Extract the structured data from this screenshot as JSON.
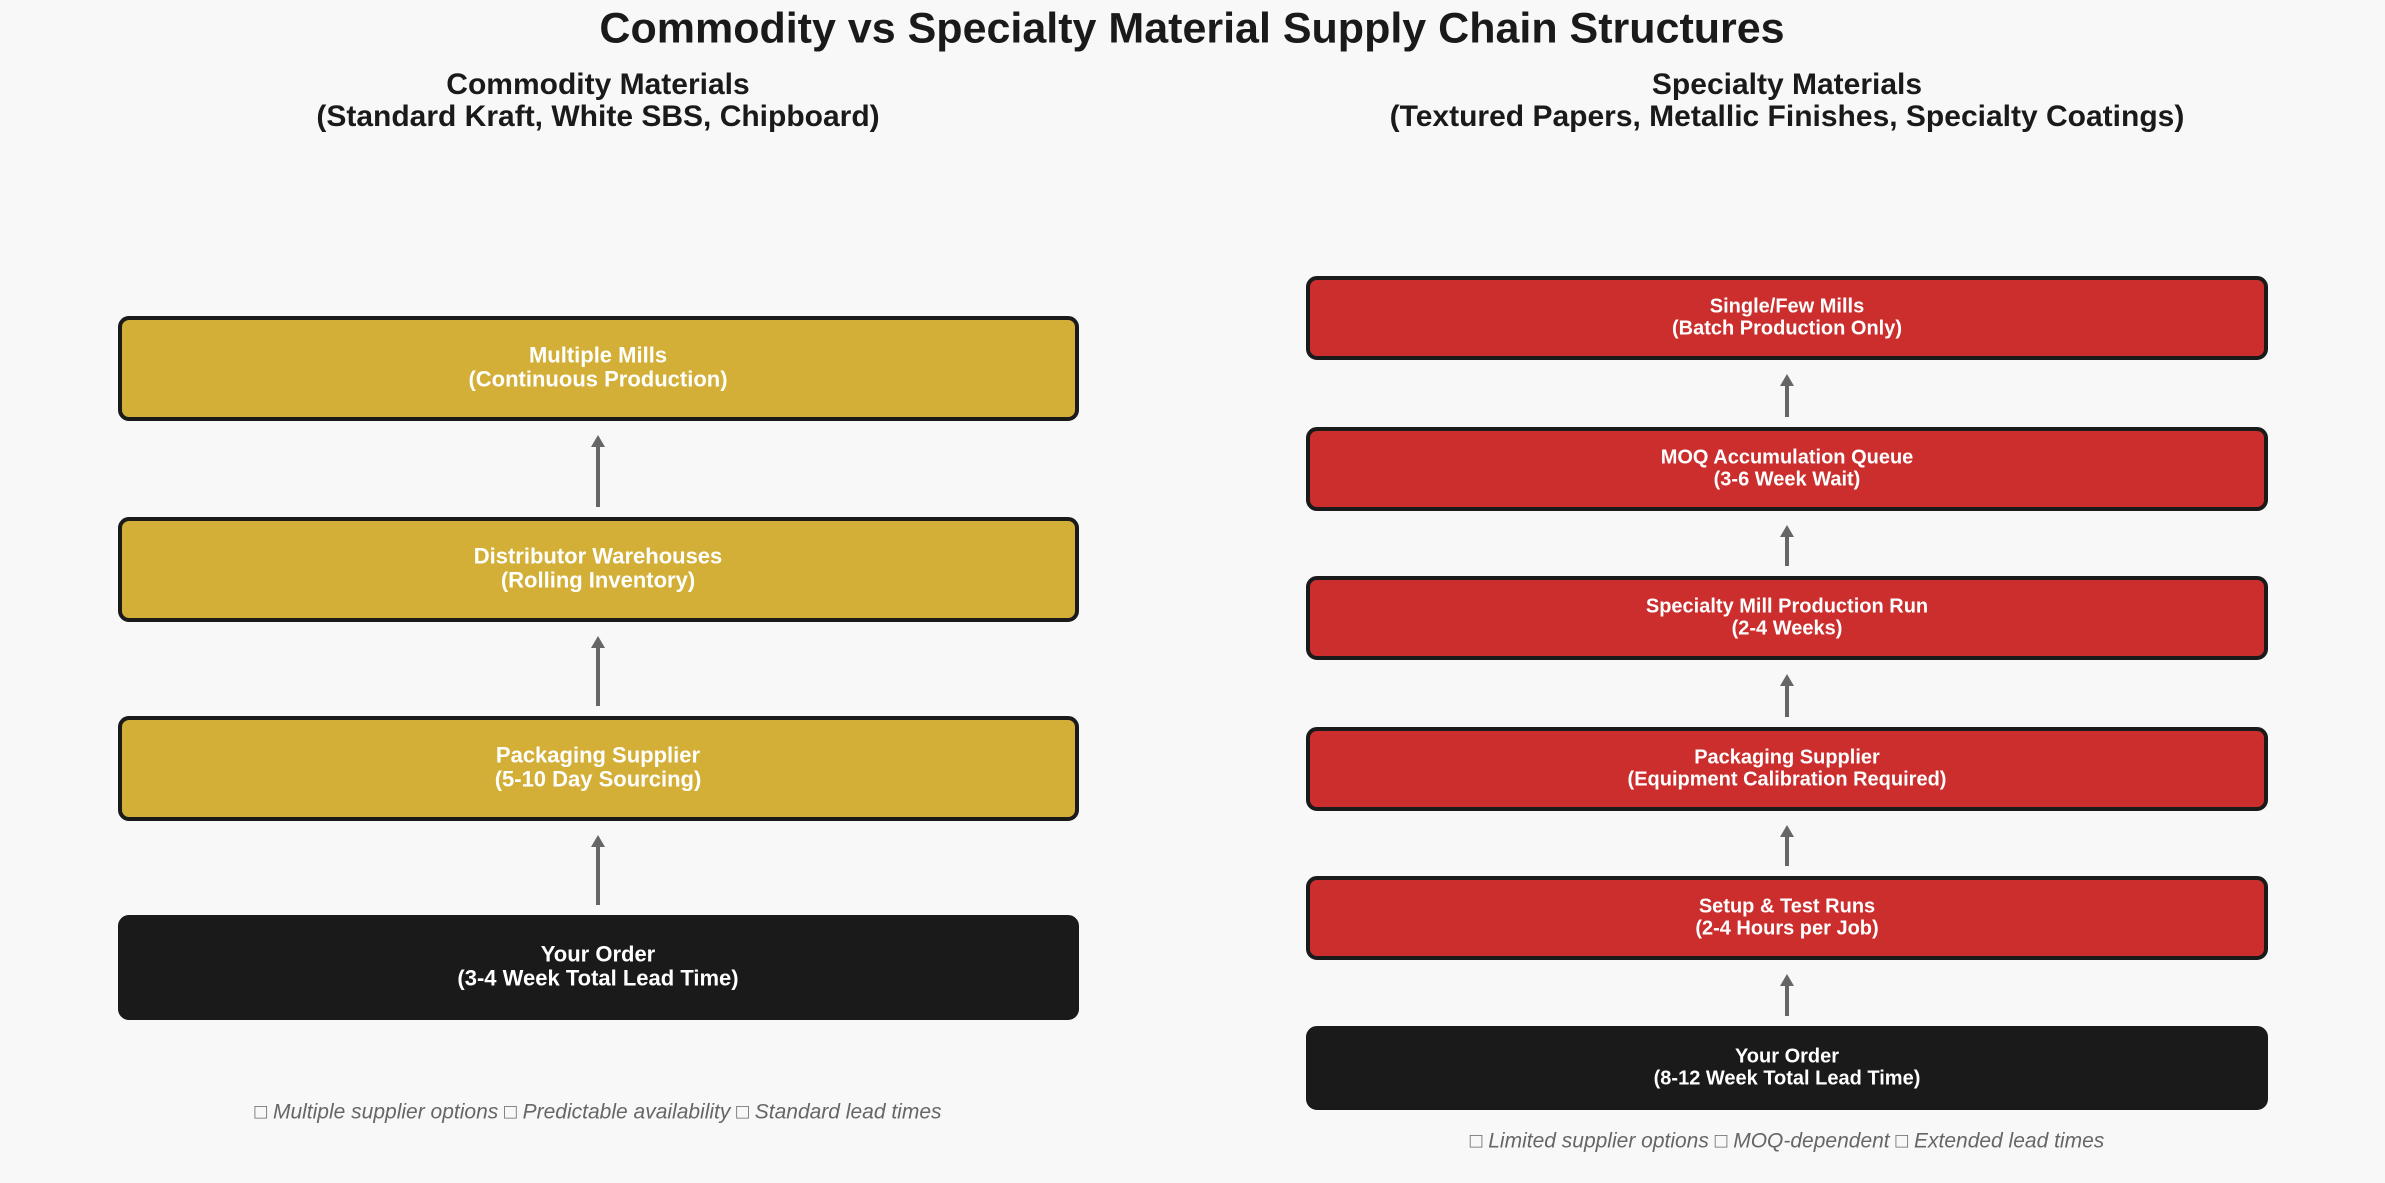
{
  "title": "Commodity vs Specialty Material Supply Chain Structures",
  "panels": [
    {
      "title": [
        "Commodity Materials",
        "(Standard Kraft, White SBS, Chipboard)"
      ],
      "nodes": [
        {
          "label": [
            "Multiple Mills",
            "(Continuous Production)"
          ]
        },
        {
          "label": [
            "Distributor Warehouses",
            "(Rolling Inventory)"
          ]
        },
        {
          "label": [
            "Packaging Supplier",
            "(5-10 Day Sourcing)"
          ]
        },
        {
          "label": [
            "Your Order",
            "(3-4 Week Total Lead Time)"
          ]
        }
      ],
      "footer": "□ Multiple supplier options  □ Predictable availability  □ Standard lead times"
    },
    {
      "title": [
        "Specialty Materials",
        "(Textured Papers, Metallic Finishes, Specialty Coatings)"
      ],
      "nodes": [
        {
          "label": [
            "Single/Few Mills",
            "(Batch Production Only)"
          ]
        },
        {
          "label": [
            "MOQ Accumulation Queue",
            "(3-6 Week Wait)"
          ]
        },
        {
          "label": [
            "Specialty Mill Production Run",
            "(2-4 Weeks)"
          ]
        },
        {
          "label": [
            "Packaging Supplier",
            "(Equipment Calibration Required)"
          ]
        },
        {
          "label": [
            "Setup & Test Runs",
            "(2-4 Hours per Job)"
          ]
        },
        {
          "label": [
            "Your Order",
            "(8-12 Week Total Lead Time)"
          ]
        }
      ],
      "footer": "□ Limited supplier options  □ MOQ-dependent  □ Extended lead times"
    }
  ]
}
